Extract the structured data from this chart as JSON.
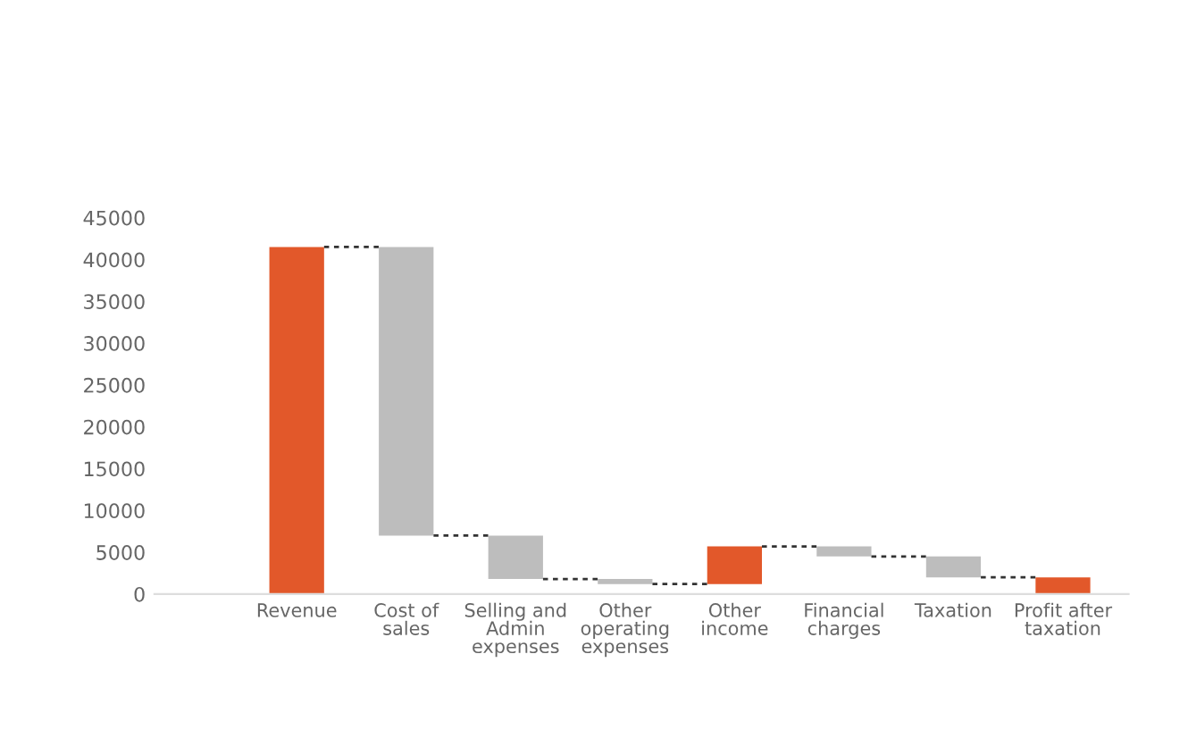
{
  "chart_data": {
    "type": "bar",
    "categories": [
      "Revenue",
      "Cost of\nsales",
      "Selling and\nAdmin\nexpenses",
      "Other\noperating\nexpenses",
      "Other\nincome",
      "Financial\ncharges",
      "Taxation",
      "Profit after\ntaxation"
    ],
    "values": [
      41500,
      -34500,
      -5200,
      -600,
      4500,
      -1200,
      -2500,
      2000
    ],
    "base": [
      0,
      41500,
      7000,
      1800,
      1200,
      5700,
      4500,
      0
    ],
    "colors": [
      "#e2582a",
      "#bdbdbd",
      "#bdbdbd",
      "#bdbdbd",
      "#e2582a",
      "#bdbdbd",
      "#bdbdbd",
      "#e2582a"
    ],
    "ylim": [
      0,
      45000
    ],
    "yticks": [
      0,
      5000,
      10000,
      15000,
      20000,
      25000,
      30000,
      35000,
      40000,
      45000
    ],
    "grid": false
  }
}
